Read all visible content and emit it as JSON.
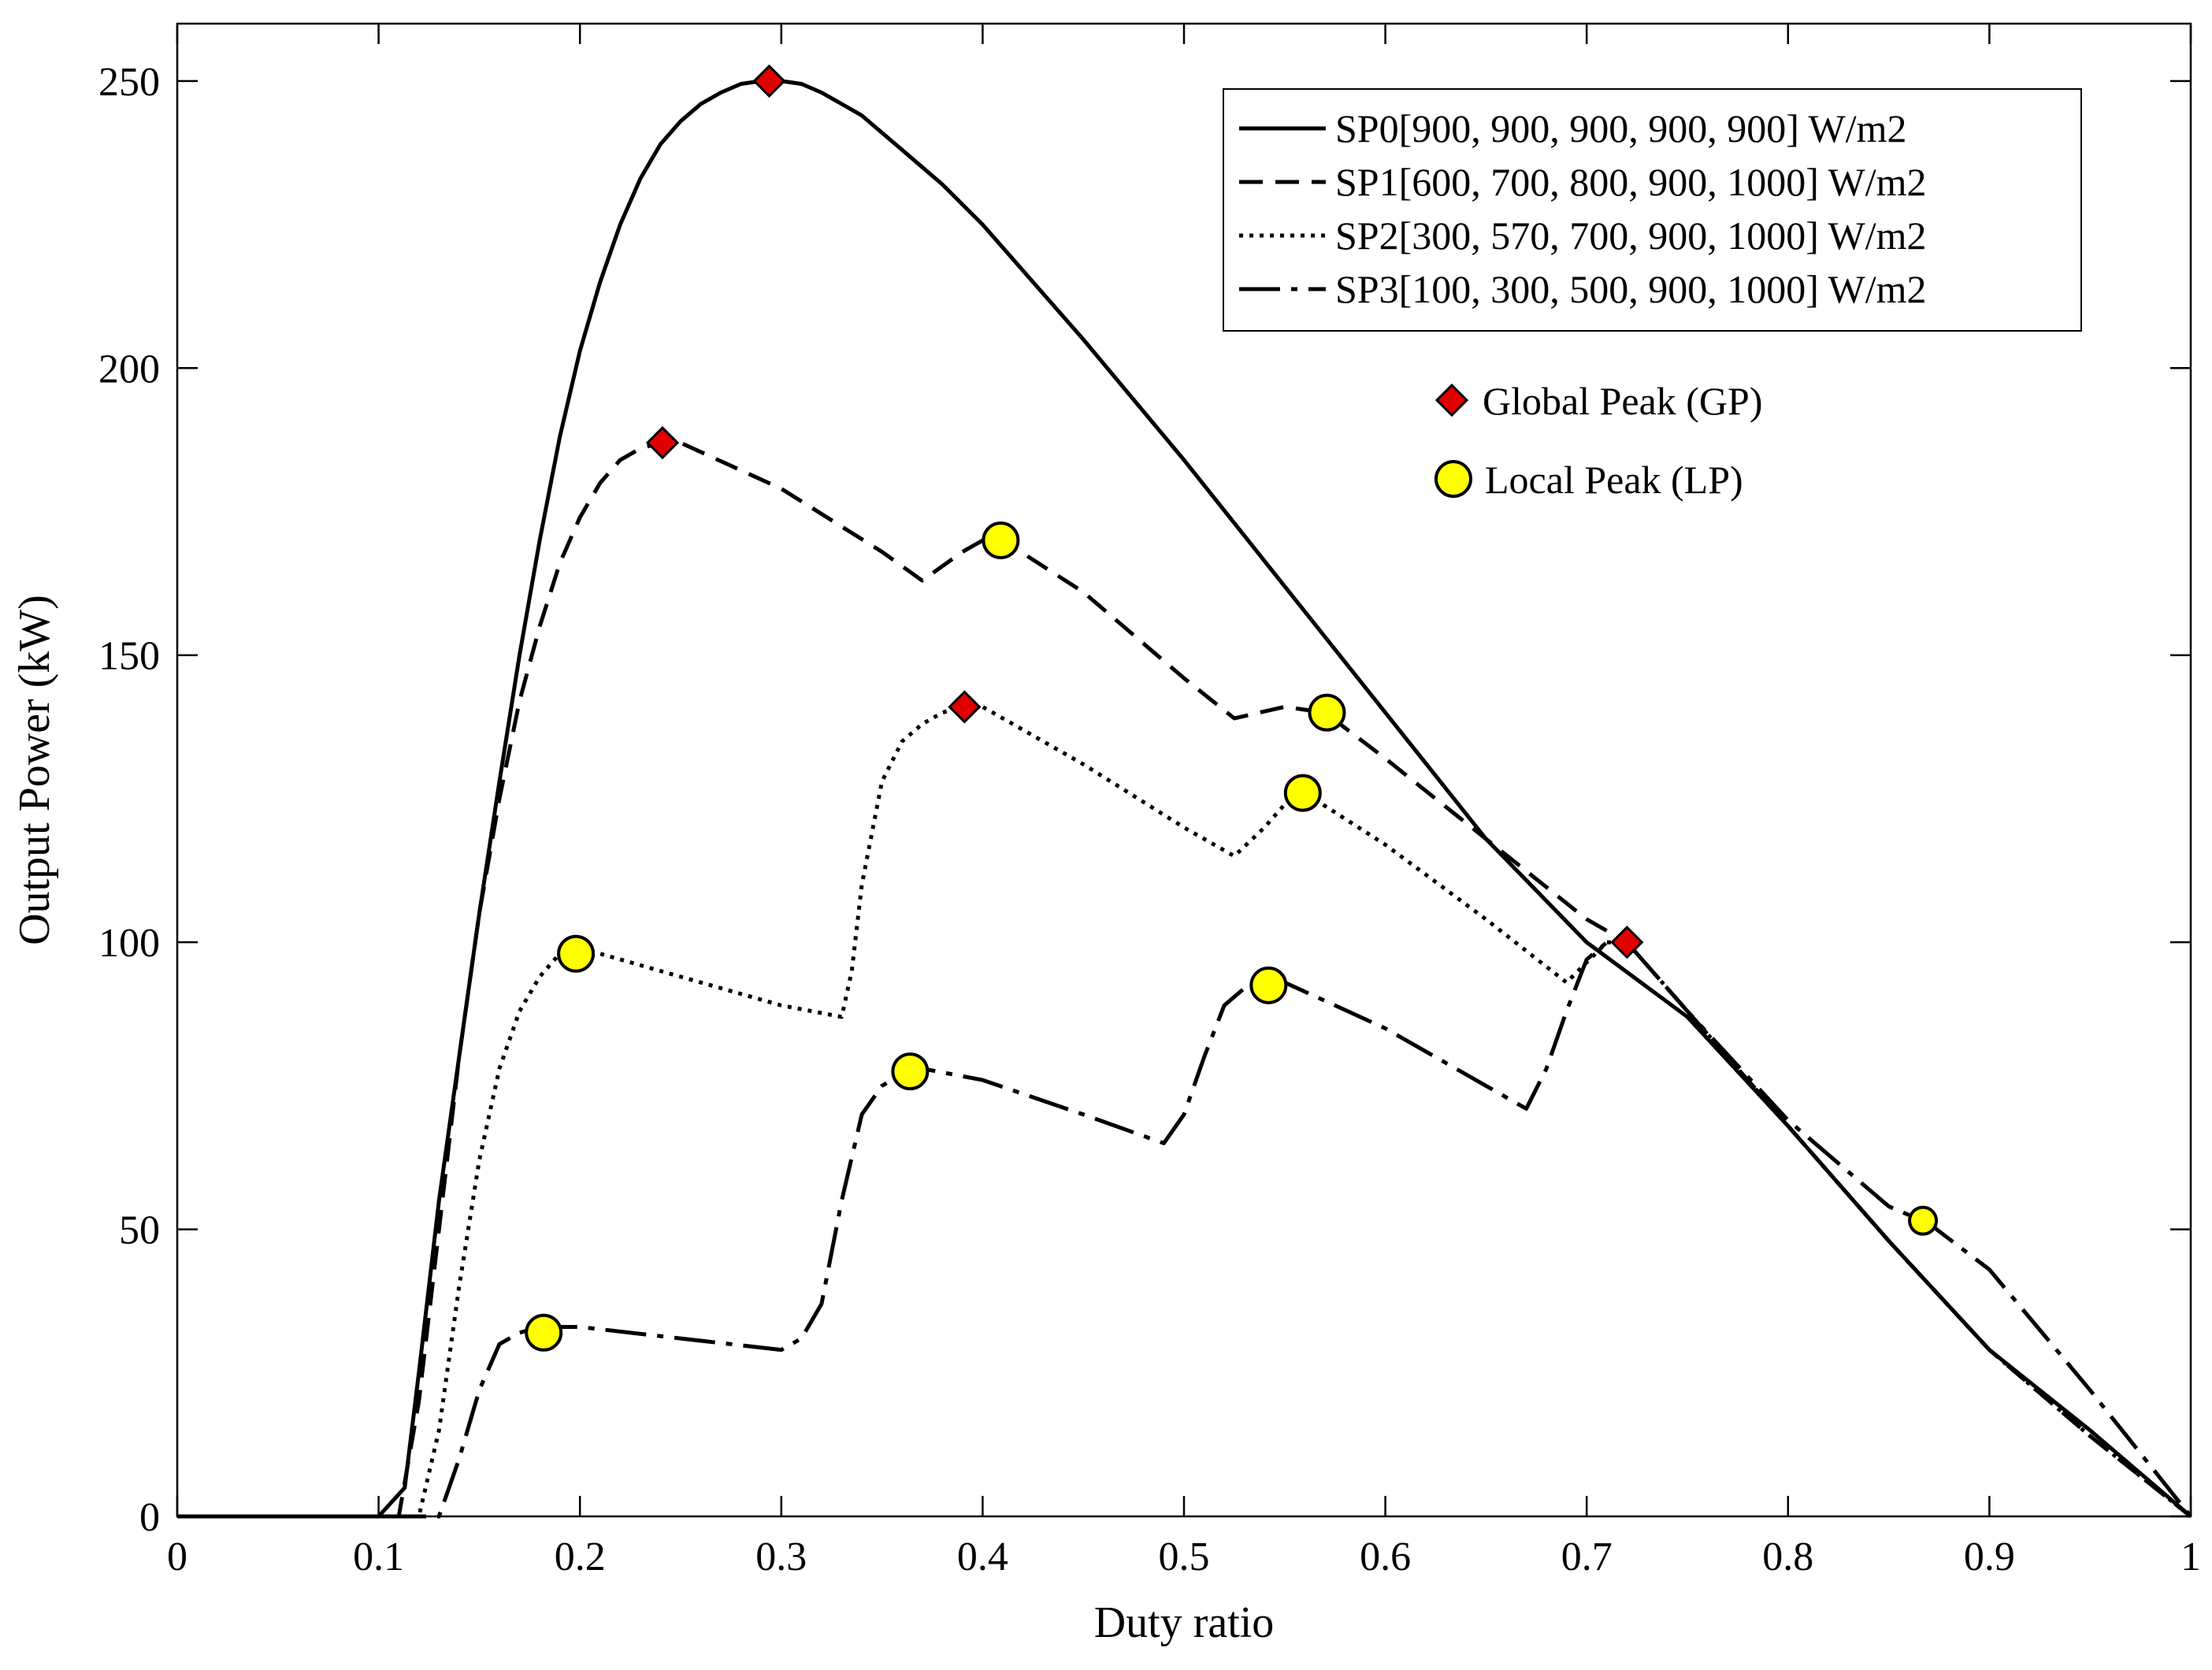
{
  "chart_data": {
    "type": "line",
    "title": "",
    "xlabel": "Duty ratio",
    "ylabel": "Output Power (kW)",
    "xlim": [
      0,
      1
    ],
    "ylim": [
      0,
      260
    ],
    "xticks": [
      0,
      0.1,
      0.2,
      0.3,
      0.4,
      0.5,
      0.6,
      0.7,
      0.8,
      0.9,
      1
    ],
    "xtick_labels": [
      "0",
      "0.1",
      "0.2",
      "0.3",
      "0.4",
      "0.5",
      "0.6",
      "0.7",
      "0.8",
      "0.9",
      "1"
    ],
    "yticks": [
      0,
      50,
      100,
      150,
      200,
      250
    ],
    "ytick_labels": [
      "0",
      "50",
      "100",
      "150",
      "200",
      "250"
    ],
    "grid": false,
    "legend_position": "top-right",
    "series": [
      {
        "name": "SP0[900, 900, 900, 900, 900] W/m2",
        "style": "solid",
        "x": [
          0,
          0.1,
          0.113,
          0.12,
          0.13,
          0.14,
          0.15,
          0.16,
          0.17,
          0.18,
          0.19,
          0.2,
          0.21,
          0.22,
          0.23,
          0.24,
          0.25,
          0.26,
          0.27,
          0.28,
          0.29,
          0.3,
          0.31,
          0.32,
          0.33,
          0.34,
          0.35,
          0.36,
          0.37,
          0.38,
          0.39,
          0.4,
          0.45,
          0.5,
          0.55,
          0.6,
          0.65,
          0.7,
          0.75,
          0.8,
          0.85,
          0.9,
          0.95,
          1
        ],
        "y": [
          0,
          0,
          5,
          25,
          55,
          80,
          105,
          128,
          150,
          170,
          188,
          203,
          215,
          225,
          233,
          239,
          243,
          246,
          248,
          249.5,
          250,
          250,
          249.5,
          248,
          246,
          244,
          241,
          238,
          235,
          232,
          228.5,
          225,
          205,
          184,
          162,
          140,
          118,
          100,
          87,
          68,
          48,
          29,
          15,
          0
        ]
      },
      {
        "name": "SP1[600, 700, 800, 900, 1000] W/m2",
        "style": "dashed",
        "x": [
          0,
          0.11,
          0.12,
          0.13,
          0.14,
          0.15,
          0.16,
          0.17,
          0.18,
          0.19,
          0.2,
          0.21,
          0.22,
          0.23,
          0.24,
          0.25,
          0.3,
          0.35,
          0.37,
          0.39,
          0.4,
          0.41,
          0.45,
          0.5,
          0.525,
          0.55,
          0.57,
          0.6,
          0.65,
          0.7,
          0.72,
          0.75,
          0.8,
          0.85,
          0.9,
          0.95,
          1
        ],
        "y": [
          0,
          0,
          20,
          50,
          80,
          105,
          125,
          142,
          155,
          166,
          174,
          180,
          184,
          186,
          187,
          187,
          179,
          168,
          163,
          168,
          170,
          170,
          161,
          146,
          139,
          141,
          140,
          132,
          118,
          104,
          100,
          88,
          68,
          48,
          29,
          14,
          0
        ]
      },
      {
        "name": "SP2[300, 570, 700, 900, 1000] W/m2",
        "style": "dotted",
        "x": [
          0,
          0.12,
          0.13,
          0.14,
          0.15,
          0.16,
          0.17,
          0.18,
          0.19,
          0.2,
          0.25,
          0.3,
          0.33,
          0.335,
          0.34,
          0.35,
          0.36,
          0.37,
          0.38,
          0.39,
          0.4,
          0.45,
          0.5,
          0.525,
          0.54,
          0.55,
          0.56,
          0.6,
          0.65,
          0.69,
          0.71,
          0.72,
          0.75,
          0.8,
          0.85,
          0.9,
          0.95,
          1
        ],
        "y": [
          0,
          0,
          15,
          40,
          62,
          78,
          88,
          94,
          98,
          99,
          94,
          89,
          87,
          95,
          110,
          128,
          135,
          138,
          140,
          141,
          141,
          131,
          120,
          115,
          120,
          124,
          126,
          117,
          104,
          93,
          100,
          100,
          88,
          68,
          48,
          29,
          14,
          0
        ]
      },
      {
        "name": "SP3[100, 300, 500, 900, 1000] W/m2",
        "style": "dashdot",
        "x": [
          0,
          0.13,
          0.14,
          0.15,
          0.16,
          0.17,
          0.18,
          0.19,
          0.2,
          0.25,
          0.3,
          0.31,
          0.32,
          0.33,
          0.34,
          0.35,
          0.36,
          0.37,
          0.4,
          0.45,
          0.49,
          0.5,
          0.51,
          0.52,
          0.53,
          0.54,
          0.55,
          0.6,
          0.65,
          0.67,
          0.68,
          0.69,
          0.7,
          0.71,
          0.72,
          0.75,
          0.8,
          0.85,
          0.87,
          0.9,
          0.95,
          1
        ],
        "y": [
          0,
          0,
          10,
          22,
          30,
          32,
          33,
          33,
          33,
          31,
          29,
          31,
          37,
          55,
          70,
          75,
          77,
          78,
          76,
          70,
          65,
          70,
          80,
          89,
          92,
          93,
          93,
          85,
          75,
          71,
          78,
          88,
          97,
          100,
          100,
          88,
          69,
          54,
          51,
          43,
          22,
          0
        ]
      }
    ],
    "markers": {
      "global_peak": {
        "label": "Global Peak (GP)",
        "shape": "diamond",
        "color": "#e00000",
        "points": [
          {
            "x": 0.294,
            "y": 250
          },
          {
            "x": 0.241,
            "y": 187
          },
          {
            "x": 0.391,
            "y": 141
          },
          {
            "x": 0.72,
            "y": 100
          }
        ]
      },
      "local_peak": {
        "label": "Local Peak (LP)",
        "shape": "circle",
        "color": "#ffff00",
        "points": [
          {
            "x": 0.409,
            "y": 170
          },
          {
            "x": 0.571,
            "y": 140
          },
          {
            "x": 0.559,
            "y": 126
          },
          {
            "x": 0.198,
            "y": 98
          },
          {
            "x": 0.364,
            "y": 77.5
          },
          {
            "x": 0.542,
            "y": 92.5
          },
          {
            "x": 0.182,
            "y": 32
          },
          {
            "x": 0.867,
            "y": 51.5
          }
        ]
      }
    }
  }
}
